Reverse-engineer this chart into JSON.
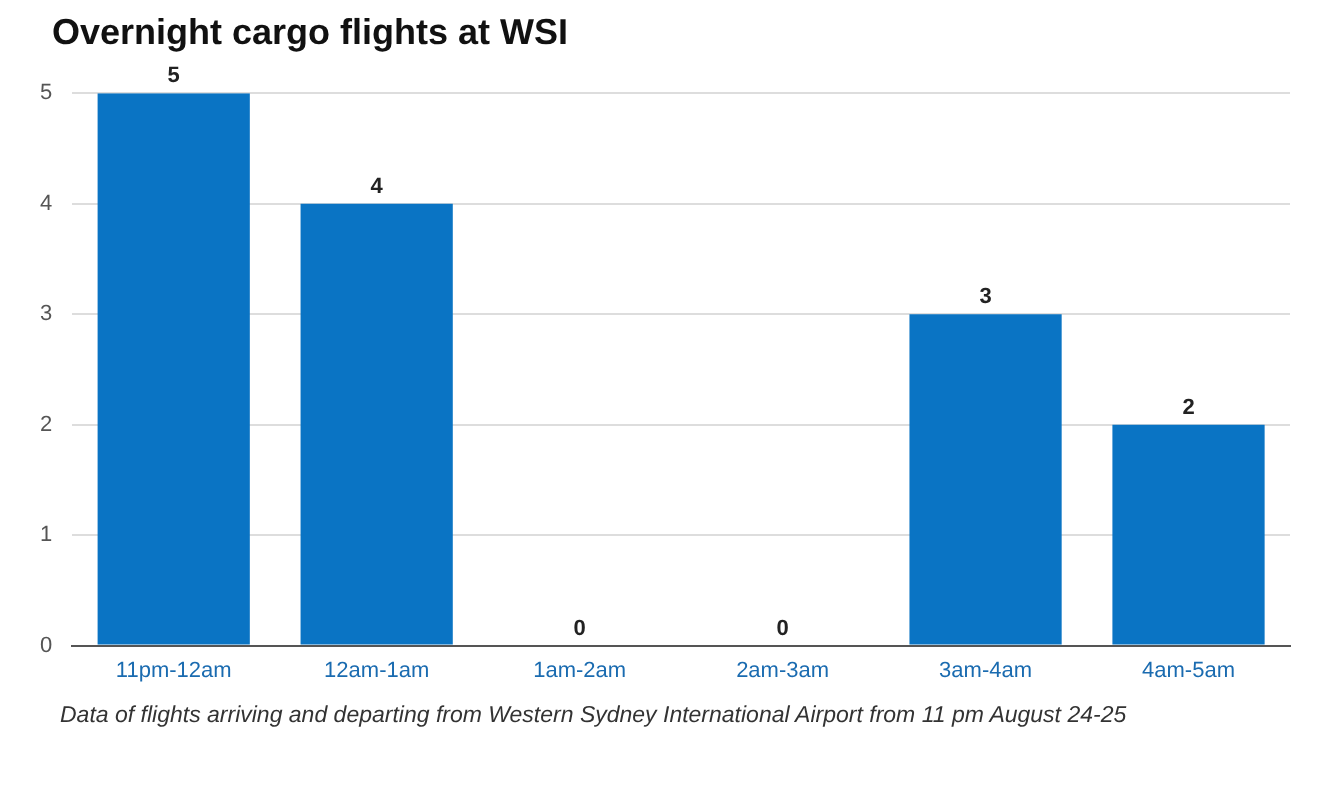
{
  "chart_data": {
    "type": "bar",
    "title": "Overnight cargo flights at WSI",
    "categories": [
      "11pm-12am",
      "12am-1am",
      "1am-2am",
      "2am-3am",
      "3am-4am",
      "4am-5am"
    ],
    "values": [
      5,
      4,
      0,
      0,
      3,
      2
    ],
    "color": "#0a74c4",
    "ylim": [
      0,
      5
    ],
    "yticks": [
      0,
      1,
      2,
      3,
      4,
      5
    ],
    "grid": "y",
    "data_labels": true,
    "annotations": [
      "Data of flights arriving and departing from Western Sydney International Airport from 11 pm August 24-25"
    ]
  }
}
